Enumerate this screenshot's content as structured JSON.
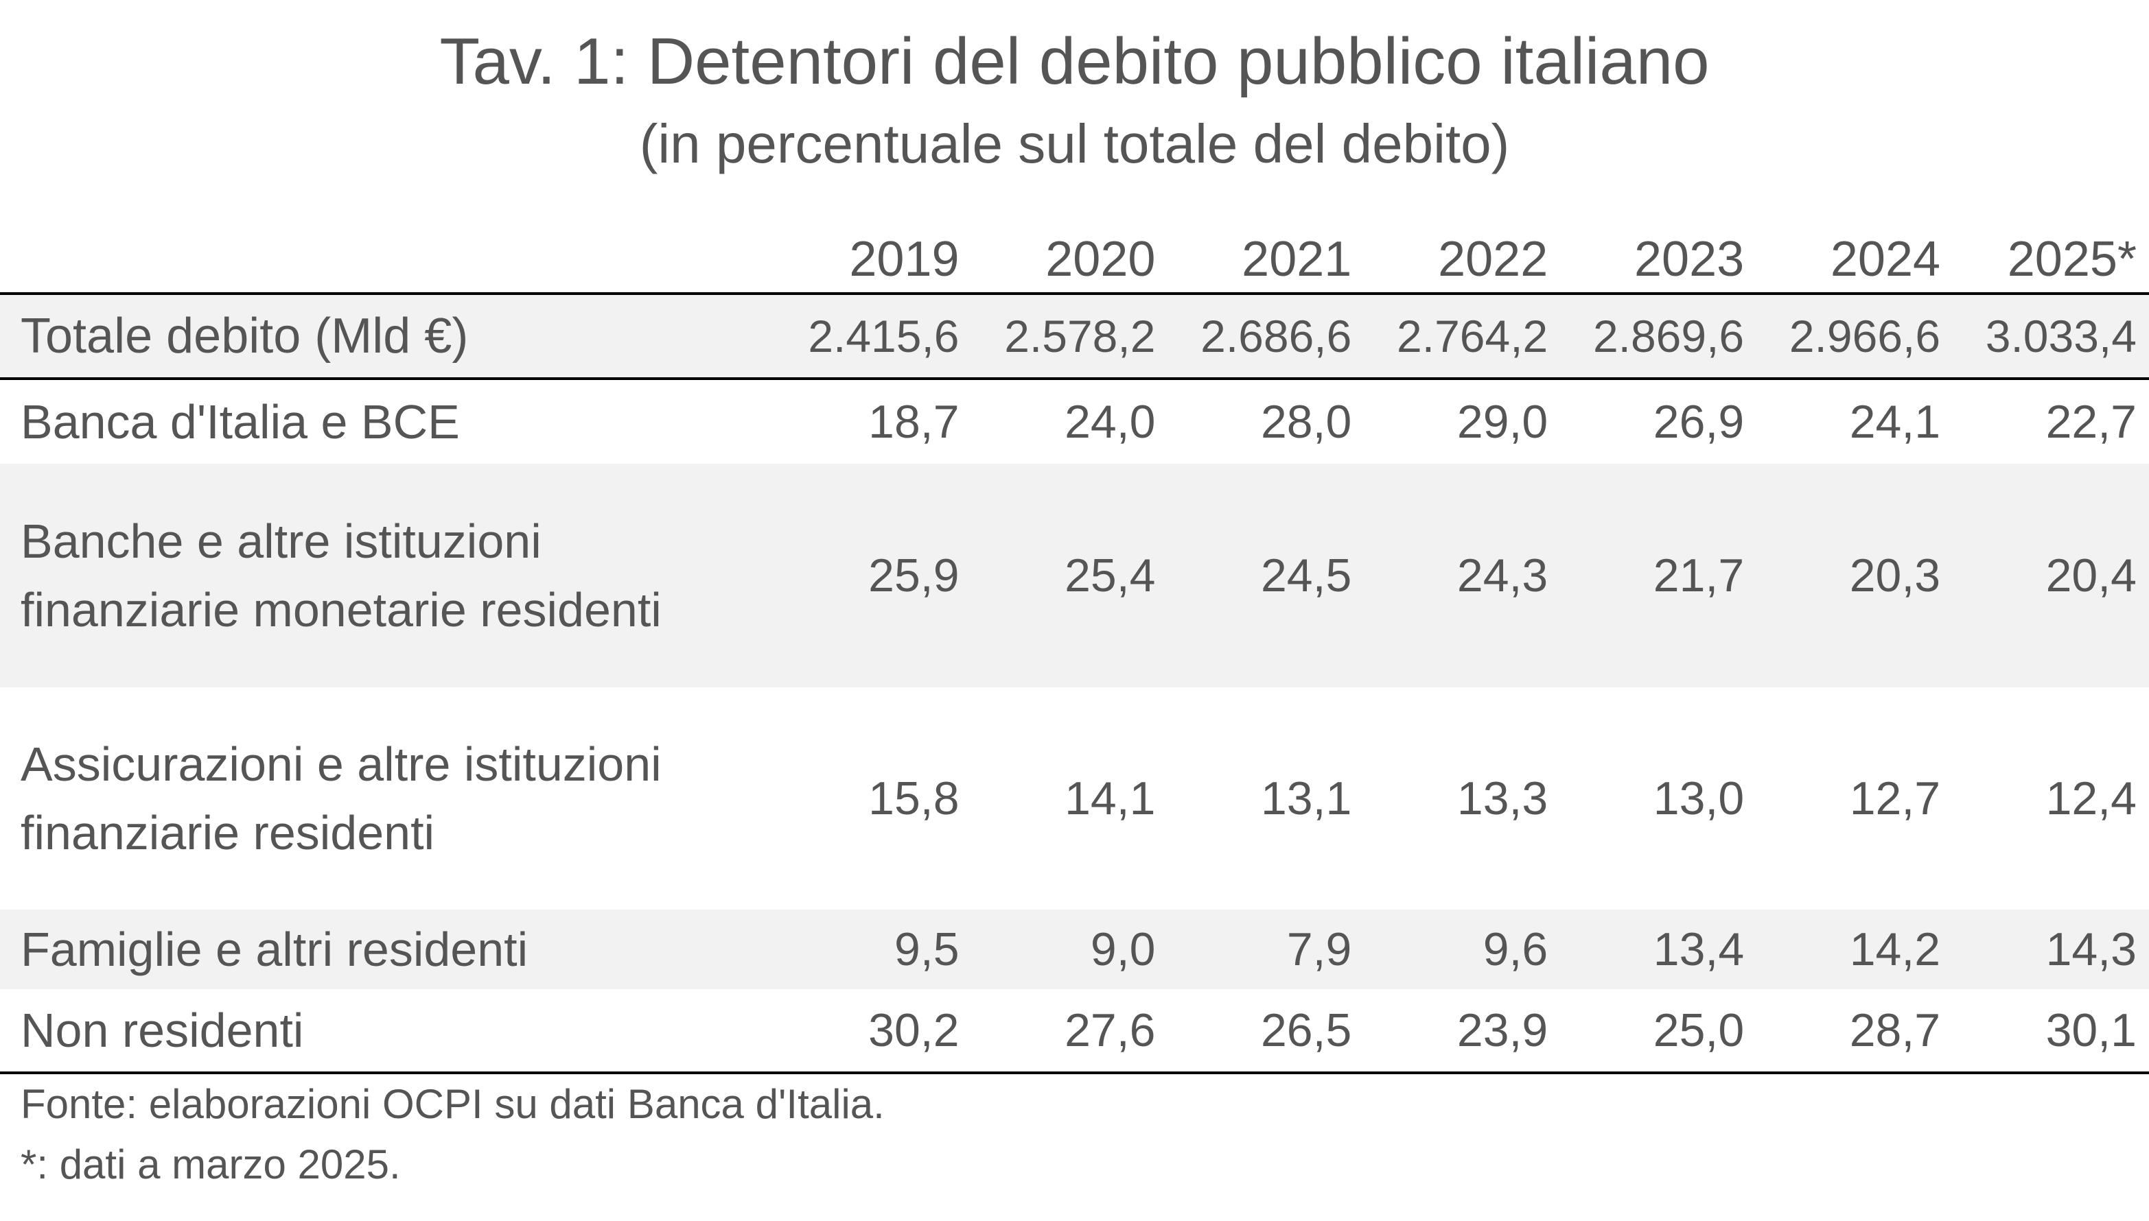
{
  "chart_data": {
    "type": "table",
    "title": "Tav. 1: Detentori del debito pubblico italiano",
    "subtitle": "(in percentuale sul totale del debito)",
    "columns": [
      "2019",
      "2020",
      "2021",
      "2022",
      "2023",
      "2024",
      "2025*"
    ],
    "total_row": {
      "label": "Totale debito (Mld €)",
      "values": [
        "2.415,6",
        "2.578,2",
        "2.686,6",
        "2.764,2",
        "2.869,6",
        "2.966,6",
        "3.033,4"
      ]
    },
    "rows": [
      {
        "label_lines": [
          "Banca d'Italia e BCE"
        ],
        "values": [
          "18,7",
          "24,0",
          "28,0",
          "29,0",
          "26,9",
          "24,1",
          "22,7"
        ]
      },
      {
        "label_lines": [
          "Banche e altre istituzioni",
          "finanziarie monetarie residenti"
        ],
        "values": [
          "25,9",
          "25,4",
          "24,5",
          "24,3",
          "21,7",
          "20,3",
          "20,4"
        ]
      },
      {
        "label_lines": [
          "Assicurazioni e altre istituzioni",
          "finanziarie residenti"
        ],
        "values": [
          "15,8",
          "14,1",
          "13,1",
          "13,3",
          "13,0",
          "12,7",
          "12,4"
        ]
      },
      {
        "label_lines": [
          "Famiglie e altri residenti"
        ],
        "values": [
          "9,5",
          "9,0",
          "7,9",
          "9,6",
          "13,4",
          "14,2",
          "14,3"
        ]
      },
      {
        "label_lines": [
          "Non residenti"
        ],
        "values": [
          "30,2",
          "27,6",
          "26,5",
          "23,9",
          "25,0",
          "28,7",
          "30,1"
        ]
      }
    ],
    "notes": [
      "Fonte: elaborazioni OCPI su dati Banca d'Italia.",
      "*: dati a marzo 2025."
    ]
  },
  "colors": {
    "text": "#555555",
    "shaded_row": "#f2f2f2",
    "rule": "#000000"
  }
}
